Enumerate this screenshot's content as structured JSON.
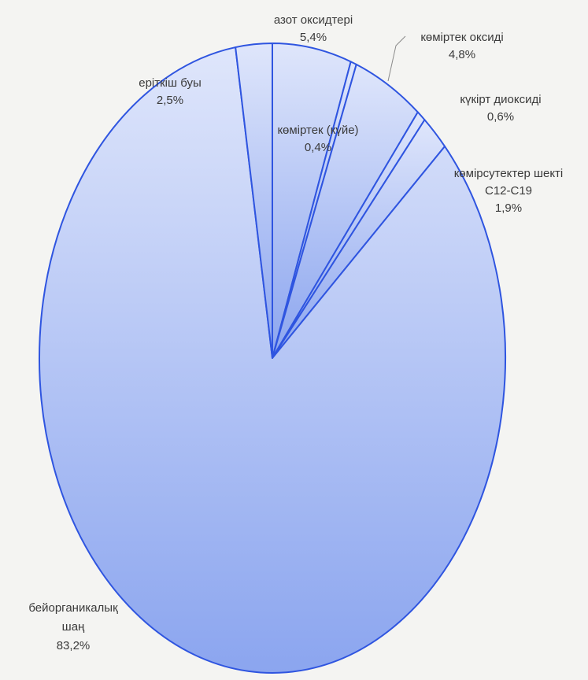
{
  "chart_data": {
    "type": "pie",
    "slices": [
      {
        "label_lines": [
          "азот оксидтері"
        ],
        "value_label": "5,4%",
        "value": 5.4
      },
      {
        "label_lines": [
          "көміртек (күйе)"
        ],
        "value_label": "0,4%",
        "value": 0.4
      },
      {
        "label_lines": [
          "көміртек оксиді"
        ],
        "value_label": "4,8%",
        "value": 4.8
      },
      {
        "label_lines": [
          "күкірт диоксиді"
        ],
        "value_label": "0,6%",
        "value": 0.6
      },
      {
        "label_lines": [
          "көмірсутектер шекті",
          "C12-C19"
        ],
        "value_label": "1,9%",
        "value": 1.9
      },
      {
        "label_lines": [
          "бейорганикалық",
          "шаң"
        ],
        "value_label": "83,2%",
        "value": 83.2
      },
      {
        "label_lines": [
          "еріткіш буы"
        ],
        "value_label": "2,5%",
        "value": 2.5
      }
    ],
    "colors": {
      "fill_top": "#dfe6fb",
      "fill_bottom": "#8ba5ef",
      "stroke": "#2f55e0"
    }
  }
}
